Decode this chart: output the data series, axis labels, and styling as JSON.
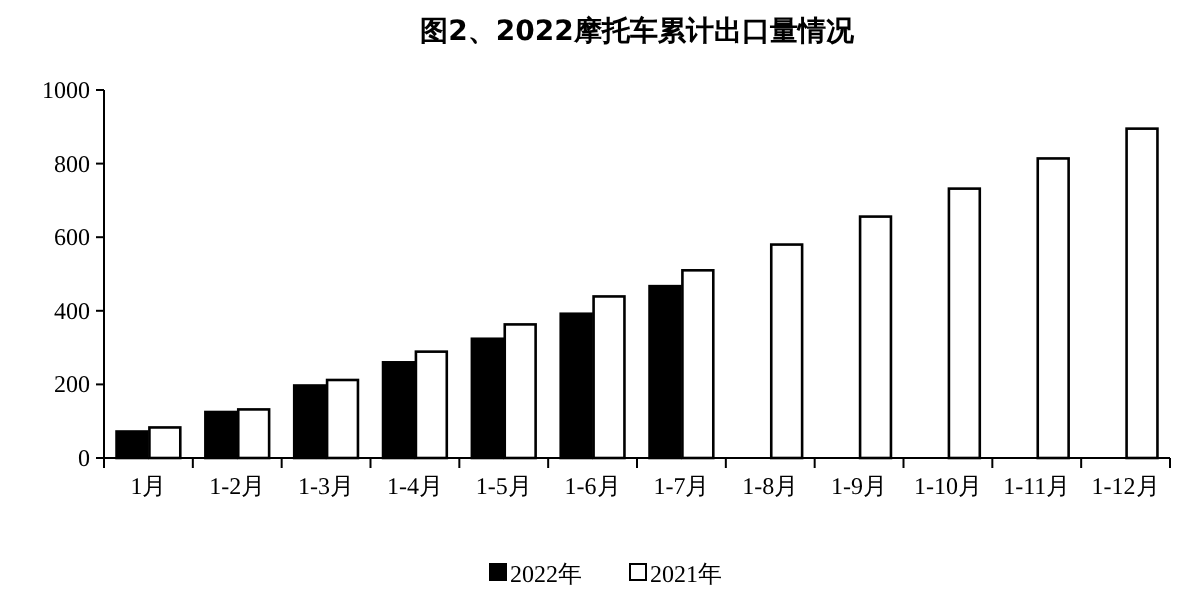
{
  "chart_data": {
    "type": "bar",
    "title": "图2、2022摩托车累计出口量情况",
    "categories": [
      "1月",
      "1-2月",
      "1-3月",
      "1-4月",
      "1-5月",
      "1-6月",
      "1-7月",
      "1-8月",
      "1-9月",
      "1-10月",
      "1-11月",
      "1-12月"
    ],
    "series": [
      {
        "name": "2022年",
        "color": "#000000",
        "values": [
          72,
          125,
          197,
          260,
          324,
          392,
          467,
          null,
          null,
          null,
          null,
          null
        ]
      },
      {
        "name": "2021年",
        "color": "#ffffff",
        "values": [
          83,
          132,
          212,
          289,
          363,
          439,
          510,
          580,
          656,
          732,
          814,
          895
        ]
      }
    ],
    "ylim": [
      0,
      1000
    ],
    "yticks": [
      0,
      200,
      400,
      600,
      800,
      1000
    ],
    "grid": false,
    "legend": "bottom"
  }
}
